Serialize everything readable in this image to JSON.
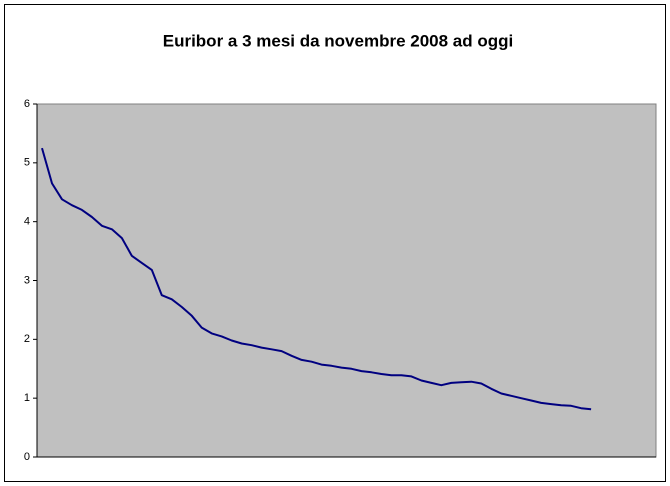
{
  "chart_data": {
    "type": "line",
    "title": "Euribor a 3 mesi da  novembre 2008 ad oggi",
    "categories": [
      null,
      null,
      null,
      null,
      null,
      null,
      null,
      null,
      null,
      null,
      null,
      null,
      null,
      null,
      null,
      null,
      null,
      null,
      null,
      null,
      null,
      null,
      null,
      null,
      null,
      null,
      null,
      null,
      null,
      null,
      null,
      null,
      null,
      null,
      null,
      null,
      null,
      null,
      null,
      null,
      null,
      null,
      null,
      null,
      null,
      null,
      null,
      null,
      null,
      null,
      null,
      null,
      null,
      null,
      null,
      null,
      null,
      null,
      null,
      null,
      null,
      null
    ],
    "series": [
      {
        "name": null,
        "color": "#000080",
        "values": [
          5.25,
          4.65,
          4.38,
          4.28,
          4.2,
          4.08,
          3.93,
          3.87,
          3.72,
          3.42,
          3.3,
          3.18,
          2.75,
          2.68,
          2.55,
          2.4,
          2.2,
          2.1,
          2.05,
          1.98,
          1.93,
          1.9,
          1.86,
          1.83,
          1.8,
          1.72,
          1.65,
          1.62,
          1.57,
          1.55,
          1.52,
          1.5,
          1.46,
          1.44,
          1.41,
          1.39,
          1.39,
          1.37,
          1.3,
          1.26,
          1.22,
          1.26,
          1.27,
          1.28,
          1.25,
          1.16,
          1.08,
          1.04,
          1.0,
          0.96,
          0.92,
          0.9,
          0.88,
          0.87,
          0.83,
          0.81,
          null,
          null,
          null,
          null,
          null,
          null
        ]
      }
    ],
    "ylim": [
      0,
      6
    ],
    "yticks": [
      0,
      1,
      2,
      3,
      4,
      5,
      6
    ],
    "grid": false,
    "plot_background": "#c0c0c0"
  }
}
